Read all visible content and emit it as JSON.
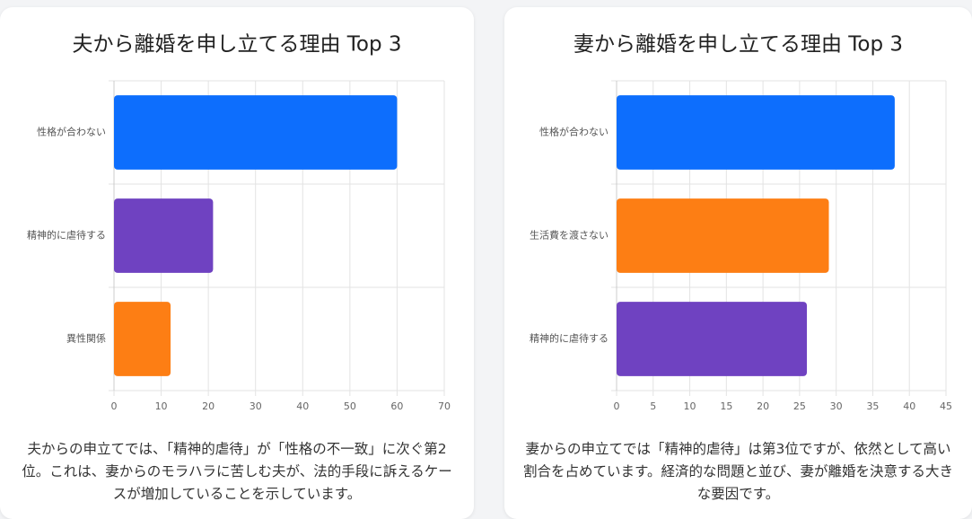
{
  "chart_data": [
    {
      "type": "bar",
      "orientation": "horizontal",
      "title": "夫から離婚を申し立てる理由 Top 3",
      "categories": [
        "性格が合わない",
        "精神的に虐待する",
        "異性関係"
      ],
      "values": [
        60,
        21,
        12
      ],
      "colors": [
        "#0d6efd",
        "#6f42c1",
        "#fd7e14"
      ],
      "xlim": [
        0,
        70
      ],
      "xticks": [
        0,
        10,
        20,
        30,
        40,
        50,
        60,
        70
      ],
      "grid": true,
      "caption": "夫からの申立てでは、「精神的虐待」が「性格の不一致」に次ぐ第2位。これは、妻からのモラハラに苦しむ夫が、法的手段に訴えるケースが増加していることを示しています。"
    },
    {
      "type": "bar",
      "orientation": "horizontal",
      "title": "妻から離婚を申し立てる理由 Top 3",
      "categories": [
        "性格が合わない",
        "生活費を渡さない",
        "精神的に虐待する"
      ],
      "values": [
        38,
        29,
        26
      ],
      "colors": [
        "#0d6efd",
        "#fd7e14",
        "#6f42c1"
      ],
      "xlim": [
        0,
        45
      ],
      "xticks": [
        0,
        5,
        10,
        15,
        20,
        25,
        30,
        35,
        40,
        45
      ],
      "grid": true,
      "caption": "妻からの申立てでは「精神的虐待」は第3位ですが、依然として高い割合を占めています。経済的な問題と並び、妻が離婚を決意する大きな要因です。"
    }
  ]
}
